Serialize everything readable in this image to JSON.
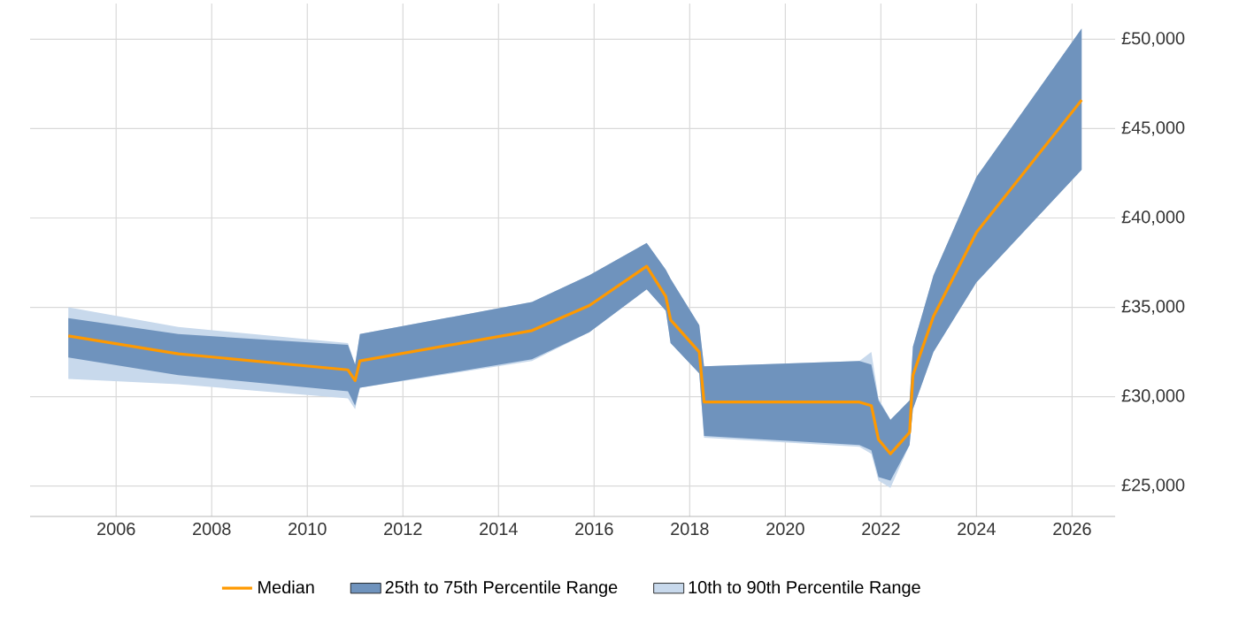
{
  "chart_data": {
    "type": "line",
    "x": [
      2005.0,
      2007.3,
      2010.85,
      2011.0,
      2011.1,
      2014.7,
      2015.9,
      2017.1,
      2017.5,
      2017.6,
      2018.2,
      2018.3,
      2021.55,
      2021.8,
      2021.95,
      2022.2,
      2022.6,
      2022.67,
      2023.1,
      2024.0,
      2026.2
    ],
    "series": [
      {
        "name": "Median",
        "color": "#ff9900",
        "values": [
          33400,
          32400,
          31500,
          30900,
          32000,
          33700,
          35100,
          37300,
          35600,
          34300,
          32500,
          29700,
          29700,
          29500,
          27600,
          26800,
          28000,
          31200,
          34500,
          39200,
          46600
        ]
      },
      {
        "name": "25th to 75th Percentile Range",
        "color": "#6f93bd",
        "values": [
          null,
          null,
          null,
          null,
          null,
          null,
          null,
          null,
          null,
          null,
          null,
          null,
          null,
          null,
          null,
          null,
          null,
          null,
          null,
          null,
          null
        ],
        "lower": [
          32200,
          31200,
          30300,
          29500,
          30500,
          32100,
          33600,
          36000,
          34800,
          33000,
          31300,
          27800,
          27300,
          27000,
          25500,
          25300,
          27300,
          29300,
          32500,
          36400,
          42700
        ],
        "upper": [
          34400,
          33500,
          32900,
          31800,
          33500,
          35300,
          36800,
          38600,
          37100,
          36600,
          34000,
          31700,
          32000,
          31800,
          29800,
          28700,
          29800,
          32800,
          36800,
          42300,
          50600
        ]
      },
      {
        "name": "10th to 90th Percentile Range",
        "color": "#c8d9ec",
        "values": [
          null,
          null,
          null,
          null,
          null,
          null,
          null,
          null,
          null,
          null,
          null,
          null,
          null,
          null,
          null,
          null,
          null,
          null,
          null,
          null,
          null
        ],
        "lower": [
          31000,
          30700,
          29900,
          29300,
          30500,
          32000,
          33600,
          36000,
          34800,
          33000,
          31300,
          27700,
          27200,
          26800,
          25300,
          24900,
          27300,
          29300,
          32500,
          36400,
          42700
        ],
        "upper": [
          35000,
          33900,
          33000,
          31800,
          33500,
          35300,
          36800,
          38600,
          37100,
          36600,
          34000,
          31700,
          32000,
          32500,
          29900,
          28700,
          29800,
          32800,
          36800,
          42300,
          50600
        ]
      }
    ],
    "xlim": [
      2004.2,
      2026.9
    ],
    "ylim": [
      23300,
      52000
    ],
    "xticks": [
      2006,
      2008,
      2010,
      2012,
      2014,
      2016,
      2018,
      2020,
      2022,
      2024,
      2026
    ],
    "yticks": [
      {
        "value": 25000,
        "label": "£25,000"
      },
      {
        "value": 30000,
        "label": "£30,000"
      },
      {
        "value": 35000,
        "label": "£35,000"
      },
      {
        "value": 40000,
        "label": "£40,000"
      },
      {
        "value": 45000,
        "label": "£45,000"
      },
      {
        "value": 50000,
        "label": "£50,000"
      }
    ],
    "grid": true,
    "legend": "bottom",
    "marker": "none"
  }
}
